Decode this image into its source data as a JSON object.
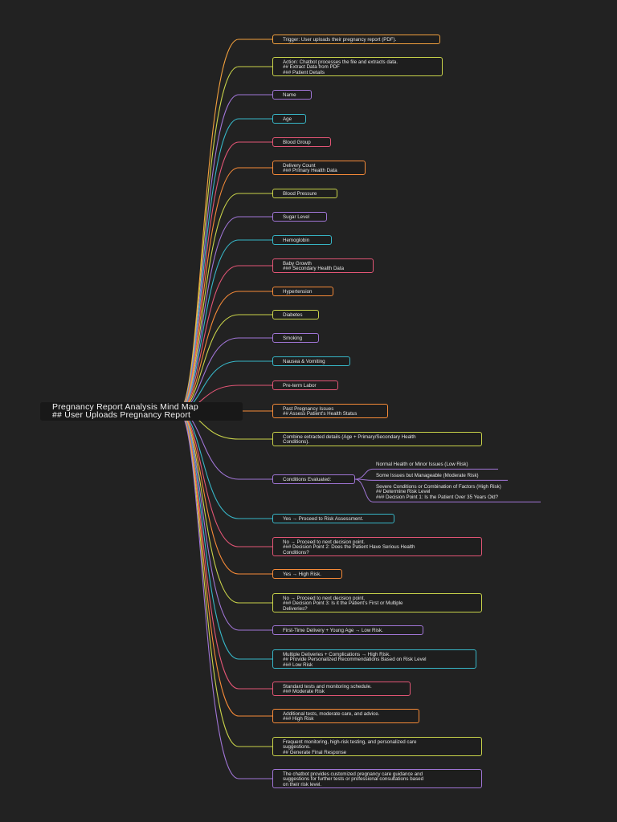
{
  "root": {
    "lines": [
      "Pregnancy Report Analysis Mind Map",
      "## User Uploads Pregnancy Report"
    ]
  },
  "palette": [
    "#f2a03d",
    "#c9d34a",
    "#a075d6",
    "#37b6c7",
    "#e25575",
    "#f58a38",
    "#c9d34a",
    "#a075d6",
    "#37b6c7",
    "#e25575",
    "#f58a38",
    "#c9d34a",
    "#a075d6",
    "#37b6c7",
    "#e25575",
    "#f58a38",
    "#c9d34a",
    "#a075d6",
    "#37b6c7",
    "#e25575",
    "#f58a38",
    "#c9d34a",
    "#a075d6",
    "#37b6c7",
    "#e25575",
    "#f58a38",
    "#c9d34a",
    "#a075d6"
  ],
  "nodes": [
    {
      "lines": [
        "Trigger: User uploads their pregnancy report (PDF)."
      ]
    },
    {
      "lines": [
        "Action: Chatbot processes the file and extracts data.",
        "## Extract Data from PDF",
        "### Patient Details"
      ]
    },
    {
      "lines": [
        "Name"
      ]
    },
    {
      "lines": [
        "Age"
      ]
    },
    {
      "lines": [
        "Blood Group"
      ]
    },
    {
      "lines": [
        "Delivery Count",
        "### Primary Health Data"
      ]
    },
    {
      "lines": [
        "Blood Pressure"
      ]
    },
    {
      "lines": [
        "Sugar Level"
      ]
    },
    {
      "lines": [
        "Hemoglobin"
      ]
    },
    {
      "lines": [
        "Baby Growth",
        "### Secondary Health Data"
      ]
    },
    {
      "lines": [
        "Hypertension"
      ]
    },
    {
      "lines": [
        "Diabetes"
      ]
    },
    {
      "lines": [
        "Smoking"
      ]
    },
    {
      "lines": [
        "Nausea & Vomiting"
      ]
    },
    {
      "lines": [
        "Pre-term Labor"
      ]
    },
    {
      "lines": [
        "Past Pregnancy Issues",
        "## Assess Patient's Health Status"
      ]
    },
    {
      "lines": [
        "Combine extracted details (Age + Primary/Secondary Health",
        "Conditions)."
      ]
    },
    {
      "lines": [
        "Conditions Evaluated:"
      ]
    },
    {
      "lines": [
        "Yes → Proceed to Risk Assessment."
      ]
    },
    {
      "lines": [
        "No → Proceed to next decision point.",
        "### Decision Point 2: Does the Patient Have Serious Health",
        "Conditions?"
      ]
    },
    {
      "lines": [
        "Yes → High Risk."
      ]
    },
    {
      "lines": [
        "No → Proceed to next decision point.",
        "### Decision Point 3: Is it the Patient’s First or Multiple",
        "Deliveries?"
      ]
    },
    {
      "lines": [
        "First-Time Delivery + Young Age → Low Risk."
      ]
    },
    {
      "lines": [
        "Multiple Deliveries + Complications → High Risk.",
        "## Provide Personalized Recommendations Based on Risk Level",
        "### Low Risk"
      ]
    },
    {
      "lines": [
        "Standard tests and monitoring schedule.",
        "### Moderate Risk"
      ]
    },
    {
      "lines": [
        "Additional tests, moderate care, and advice.",
        "### High Risk"
      ]
    },
    {
      "lines": [
        "Frequent monitoring, high-risk testing, and personalized care",
        "suggestions.",
        "## Generate Final Response"
      ]
    },
    {
      "lines": [
        "The chatbot provides customized pregnancy care guidance and",
        "suggestions for further tests or professional consultations based",
        "on their risk level."
      ]
    }
  ],
  "conditions_children": [
    {
      "lines": [
        "Normal Health or Minor Issues (Low Risk)"
      ]
    },
    {
      "lines": [
        "Some Issues but Manageable (Moderate Risk)"
      ]
    },
    {
      "lines": [
        "Severe Conditions or Combination of Factors (High Risk)",
        "## Determine Risk Level",
        "### Decision Point 1: Is the Patient Over 35 Years Old?"
      ]
    }
  ],
  "sub_colors": [
    "#a075d6",
    "#a075d6",
    "#a075d6"
  ]
}
